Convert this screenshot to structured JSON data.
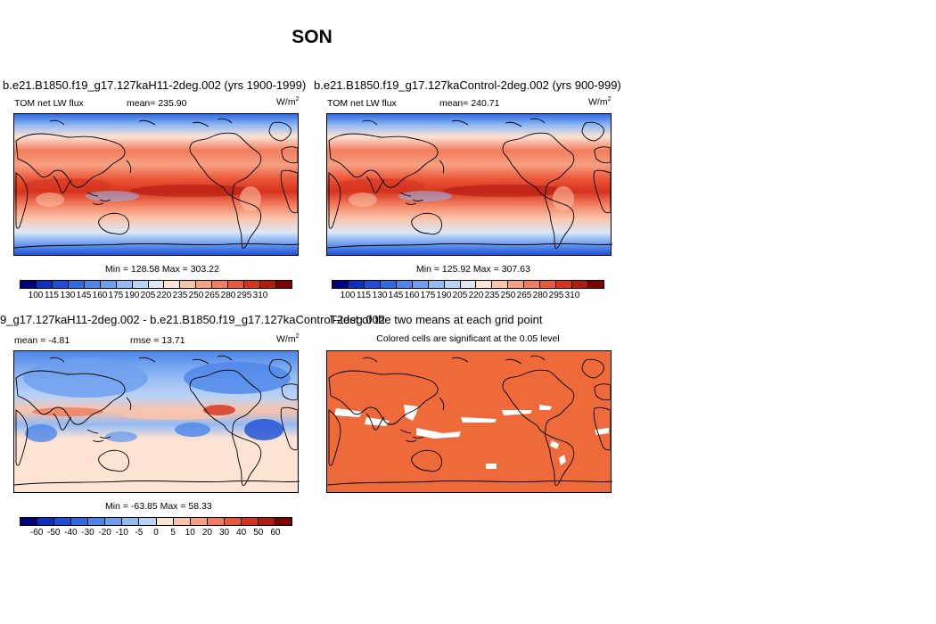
{
  "title": "SON",
  "panels": {
    "top_left": {
      "title": "b.e21.B1850.f19_g17.127kaH11-2deg.002 (yrs 1900-1999)",
      "var_label": "TOM net LW flux",
      "mean": "mean= 235.90",
      "units": "W/m",
      "units_exp": "2",
      "minmax": "Min = 128.58 Max = 303.22"
    },
    "top_right": {
      "title": "b.e21.B1850.f19_g17.127kaControl-2deg.002 (yrs 900-999)",
      "var_label": "TOM net LW flux",
      "mean": "mean= 240.71",
      "units": "W/m",
      "units_exp": "2",
      "minmax": "Min = 125.92 Max = 307.63"
    },
    "bottom_left": {
      "title": "9_g17.127kaH11-2deg.002 - b.e21.B1850.f19_g17.127kaControl-2deg.002",
      "mean": "mean =  -4.81",
      "rmse": "rmse =  13.71",
      "units": "W/m",
      "units_exp": "2",
      "minmax": "Min = -63.85 Max =  58.33"
    },
    "bottom_right": {
      "title": "T-test of the two means at each grid point",
      "subtitle": "Colored cells are significant at the 0.05 level"
    }
  },
  "colorbar_abs": {
    "labels": [
      "100",
      "115",
      "130",
      "145",
      "160",
      "175",
      "190",
      "205",
      "220",
      "235",
      "250",
      "265",
      "280",
      "295",
      "310"
    ],
    "colors": [
      "#00007f",
      "#0b2fbf",
      "#1c4fd6",
      "#2f6ae2",
      "#4d86ea",
      "#6e9fef",
      "#93baf3",
      "#b9d3f7",
      "#dbe8f8",
      "#fde3d4",
      "#fbc4aa",
      "#f7a182",
      "#f27c5d",
      "#ea5638",
      "#d6321c",
      "#b01a0f",
      "#7f0000"
    ]
  },
  "colorbar_diff": {
    "labels": [
      "-60",
      "-50",
      "-40",
      "-30",
      "-20",
      "-10",
      "-5",
      "0",
      "5",
      "10",
      "20",
      "30",
      "40",
      "50",
      "60"
    ],
    "colors": [
      "#00007f",
      "#0b2fbf",
      "#1c4fd6",
      "#2f6ae2",
      "#4d86ea",
      "#6e9fef",
      "#93baf3",
      "#b9d3f7",
      "#fde3d4",
      "#fbc4aa",
      "#f7a182",
      "#f27c5d",
      "#ea5638",
      "#d6321c",
      "#b01a0f",
      "#7f0000"
    ]
  },
  "ttest_color": "#ee6a3a",
  "chart_data": [
    {
      "type": "heatmap",
      "title": "b.e21.B1850.f19_g17.127kaH11-2deg.002 (yrs 1900-1999)",
      "variable": "TOM net LW flux",
      "units": "W/m2",
      "mean": 235.9,
      "min": 128.58,
      "max": 303.22,
      "levels": [
        100,
        115,
        130,
        145,
        160,
        175,
        190,
        205,
        220,
        235,
        250,
        265,
        280,
        295,
        310
      ]
    },
    {
      "type": "heatmap",
      "title": "b.e21.B1850.f19_g17.127kaControl-2deg.002 (yrs 900-999)",
      "variable": "TOM net LW flux",
      "units": "W/m2",
      "mean": 240.71,
      "min": 125.92,
      "max": 307.63,
      "levels": [
        100,
        115,
        130,
        145,
        160,
        175,
        190,
        205,
        220,
        235,
        250,
        265,
        280,
        295,
        310
      ]
    },
    {
      "type": "heatmap",
      "title": "9_g17.127kaH11-2deg.002 - b.e21.B1850.f19_g17.127kaControl-2deg.002",
      "units": "W/m2",
      "mean": -4.81,
      "rmse": 13.71,
      "min": -63.85,
      "max": 58.33,
      "levels": [
        -60,
        -50,
        -40,
        -30,
        -20,
        -10,
        -5,
        0,
        5,
        10,
        20,
        30,
        40,
        50,
        60
      ]
    },
    {
      "type": "heatmap",
      "title": "T-test of the two means at each grid point",
      "subtitle": "Colored cells are significant at the 0.05 level"
    }
  ]
}
